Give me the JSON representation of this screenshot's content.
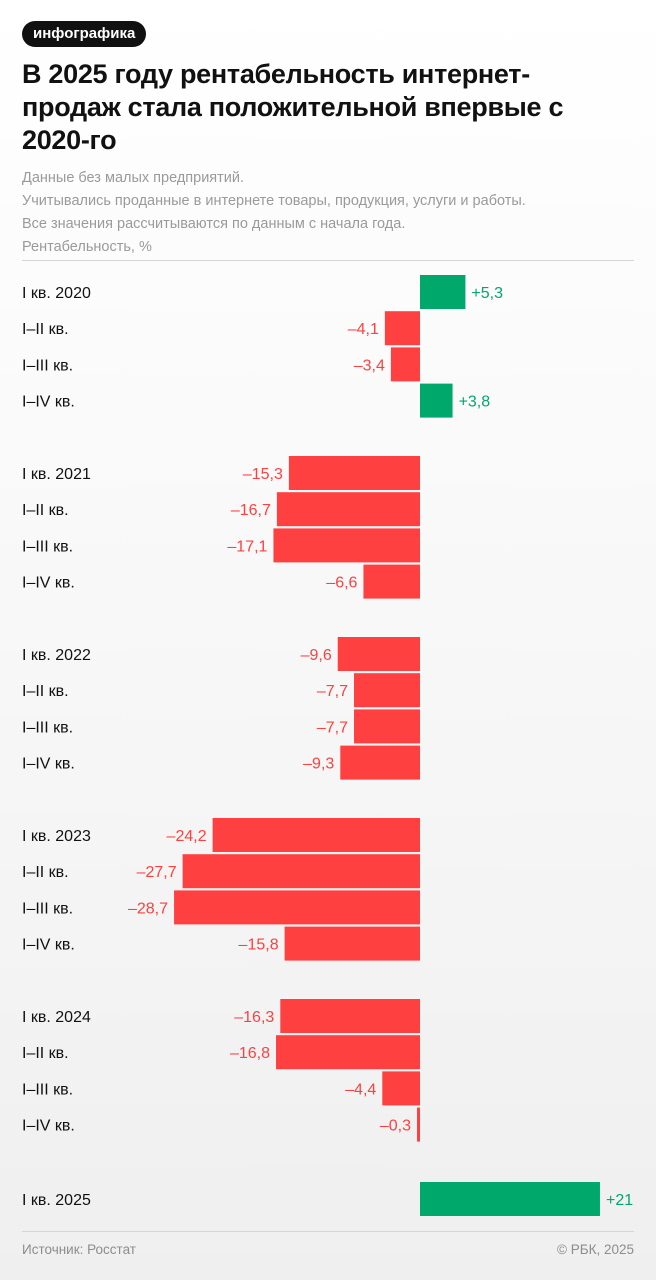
{
  "badge": "инфографика",
  "title": "В 2025 году рентабельность интернет-продаж стала положительной впервые с 2020-го",
  "subtitle_lines": [
    "Данные без малых предприятий.",
    "Учитывались проданные в интернете товары, продукция, услуги и работы.",
    "Все значения рассчитываются по данным с начала года.",
    "Рентабельность, %"
  ],
  "source": "Источник: Росстат",
  "copyright": "© РБК, 2025",
  "colors": {
    "positive": "#00a86b",
    "negative": "#ff4040",
    "text": "#111111",
    "muted": "#9a9a9a"
  },
  "chart_data": {
    "type": "bar",
    "orientation": "horizontal",
    "ylabel": "Рентабельность, %",
    "categories": [
      "I кв. 2020",
      "I–II кв.",
      "I–III кв.",
      "I–IV кв.",
      "I кв. 2021",
      "I–II кв.",
      "I–III кв.",
      "I–IV кв.",
      "I кв. 2022",
      "I–II кв.",
      "I–III кв.",
      "I–IV кв.",
      "I кв. 2023",
      "I–II кв.",
      "I–III кв.",
      "I–IV кв.",
      "I кв. 2024",
      "I–II кв.",
      "I–III кв.",
      "I–IV кв.",
      "I кв. 2025"
    ],
    "values": [
      5.3,
      -4.1,
      -3.4,
      3.8,
      -15.3,
      -16.7,
      -17.1,
      -6.6,
      -9.6,
      -7.7,
      -7.7,
      -9.3,
      -24.2,
      -27.7,
      -28.7,
      -15.8,
      -16.3,
      -16.8,
      -4.4,
      -0.3,
      21
    ],
    "value_labels": [
      "+5,3",
      "–4,1",
      "–3,4",
      "+3,8",
      "–15,3",
      "–16,7",
      "–17,1",
      "–6,6",
      "–9,6",
      "–7,7",
      "–7,7",
      "–9,3",
      "–24,2",
      "–27,7",
      "–28,7",
      "–15,8",
      "–16,3",
      "–16,8",
      "–4,4",
      "–0,3",
      "+21"
    ],
    "groups": [
      {
        "year": 2020,
        "indices": [
          0,
          1,
          2,
          3
        ]
      },
      {
        "year": 2021,
        "indices": [
          4,
          5,
          6,
          7
        ]
      },
      {
        "year": 2022,
        "indices": [
          8,
          9,
          10,
          11
        ]
      },
      {
        "year": 2023,
        "indices": [
          12,
          13,
          14,
          15
        ]
      },
      {
        "year": 2024,
        "indices": [
          16,
          17,
          18,
          19
        ]
      },
      {
        "year": 2025,
        "indices": [
          20
        ]
      }
    ],
    "grid": false,
    "legend": "none"
  }
}
